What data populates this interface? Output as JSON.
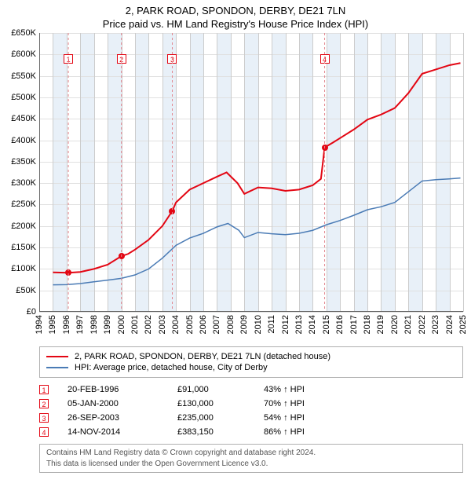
{
  "title1": "2, PARK ROAD, SPONDON, DERBY, DE21 7LN",
  "title2": "Price paid vs. HM Land Registry's House Price Index (HPI)",
  "chart": {
    "type": "line",
    "background_color": "#ffffff",
    "grid_color": "#e0e0e0",
    "axis_color": "#666666",
    "vline_color": "#cccccc",
    "band_color": "#e8f0f8",
    "ylim": [
      0,
      650000
    ],
    "ytick_step": 50000,
    "yticks_labels": [
      "£0",
      "£50K",
      "£100K",
      "£150K",
      "£200K",
      "£250K",
      "£300K",
      "£350K",
      "£400K",
      "£450K",
      "£500K",
      "£550K",
      "£600K",
      "£650K"
    ],
    "xlim": [
      1994,
      2025
    ],
    "xticks": [
      1994,
      1995,
      1996,
      1997,
      1998,
      1999,
      2000,
      2001,
      2002,
      2003,
      2004,
      2005,
      2006,
      2007,
      2008,
      2009,
      2010,
      2011,
      2012,
      2013,
      2014,
      2015,
      2016,
      2017,
      2018,
      2019,
      2020,
      2021,
      2022,
      2023,
      2024,
      2025
    ],
    "fontsize_axis": 11,
    "series": [
      {
        "name": "2, PARK ROAD, SPONDON, DERBY, DE21 7LN (detached house)",
        "color": "#e30613",
        "width": 2,
        "data": [
          [
            1995.0,
            92000
          ],
          [
            1996.13,
            91000
          ],
          [
            1997.0,
            93000
          ],
          [
            1998.0,
            100000
          ],
          [
            1999.0,
            110000
          ],
          [
            2000.01,
            130000
          ],
          [
            2000.5,
            135000
          ],
          [
            2001.0,
            145000
          ],
          [
            2002.0,
            168000
          ],
          [
            2003.0,
            200000
          ],
          [
            2003.73,
            235000
          ],
          [
            2004.0,
            255000
          ],
          [
            2005.0,
            285000
          ],
          [
            2006.0,
            300000
          ],
          [
            2007.0,
            315000
          ],
          [
            2007.7,
            325000
          ],
          [
            2008.5,
            300000
          ],
          [
            2009.0,
            275000
          ],
          [
            2010.0,
            290000
          ],
          [
            2011.0,
            288000
          ],
          [
            2012.0,
            282000
          ],
          [
            2013.0,
            285000
          ],
          [
            2014.0,
            295000
          ],
          [
            2014.6,
            310000
          ],
          [
            2014.87,
            383150
          ],
          [
            2015.5,
            395000
          ],
          [
            2016.0,
            405000
          ],
          [
            2017.0,
            425000
          ],
          [
            2018.0,
            448000
          ],
          [
            2019.0,
            460000
          ],
          [
            2020.0,
            475000
          ],
          [
            2021.0,
            510000
          ],
          [
            2022.0,
            555000
          ],
          [
            2023.0,
            565000
          ],
          [
            2024.0,
            575000
          ],
          [
            2024.8,
            580000
          ]
        ]
      },
      {
        "name": "HPI: Average price, detached house, City of Derby",
        "color": "#4a7bb5",
        "width": 1.5,
        "data": [
          [
            1995.0,
            63000
          ],
          [
            1996.0,
            63500
          ],
          [
            1997.0,
            66000
          ],
          [
            1998.0,
            70000
          ],
          [
            1999.0,
            74000
          ],
          [
            2000.0,
            78000
          ],
          [
            2001.0,
            86000
          ],
          [
            2002.0,
            100000
          ],
          [
            2003.0,
            125000
          ],
          [
            2004.0,
            155000
          ],
          [
            2005.0,
            172000
          ],
          [
            2006.0,
            183000
          ],
          [
            2007.0,
            198000
          ],
          [
            2007.8,
            206000
          ],
          [
            2008.6,
            190000
          ],
          [
            2009.0,
            173000
          ],
          [
            2010.0,
            185000
          ],
          [
            2011.0,
            182000
          ],
          [
            2012.0,
            180000
          ],
          [
            2013.0,
            183000
          ],
          [
            2014.0,
            190000
          ],
          [
            2015.0,
            203000
          ],
          [
            2016.0,
            213000
          ],
          [
            2017.0,
            225000
          ],
          [
            2018.0,
            238000
          ],
          [
            2019.0,
            245000
          ],
          [
            2020.0,
            255000
          ],
          [
            2021.0,
            280000
          ],
          [
            2022.0,
            305000
          ],
          [
            2023.0,
            308000
          ],
          [
            2024.0,
            310000
          ],
          [
            2024.8,
            312000
          ]
        ]
      }
    ],
    "sale_markers": [
      {
        "n": "1",
        "x": 1996.13,
        "y": 91000,
        "box_y": 600000
      },
      {
        "n": "2",
        "x": 2000.01,
        "y": 130000,
        "box_y": 600000
      },
      {
        "n": "3",
        "x": 2003.73,
        "y": 235000,
        "box_y": 600000
      },
      {
        "n": "4",
        "x": 2014.87,
        "y": 383150,
        "box_y": 600000
      }
    ],
    "marker_color": "#e30613",
    "marker_dash_color": "#e38790"
  },
  "legend": {
    "items": [
      {
        "color": "#e30613",
        "label": "2, PARK ROAD, SPONDON, DERBY, DE21 7LN (detached house)"
      },
      {
        "color": "#4a7bb5",
        "label": "HPI: Average price, detached house, City of Derby"
      }
    ]
  },
  "sales": [
    {
      "n": "1",
      "date": "20-FEB-1996",
      "price": "£91,000",
      "diff": "43% ↑ HPI"
    },
    {
      "n": "2",
      "date": "05-JAN-2000",
      "price": "£130,000",
      "diff": "70% ↑ HPI"
    },
    {
      "n": "3",
      "date": "26-SEP-2003",
      "price": "£235,000",
      "diff": "54% ↑ HPI"
    },
    {
      "n": "4",
      "date": "14-NOV-2014",
      "price": "£383,150",
      "diff": "86% ↑ HPI"
    }
  ],
  "footer": {
    "line1": "Contains HM Land Registry data © Crown copyright and database right 2024.",
    "line2": "This data is licensed under the Open Government Licence v3.0."
  }
}
